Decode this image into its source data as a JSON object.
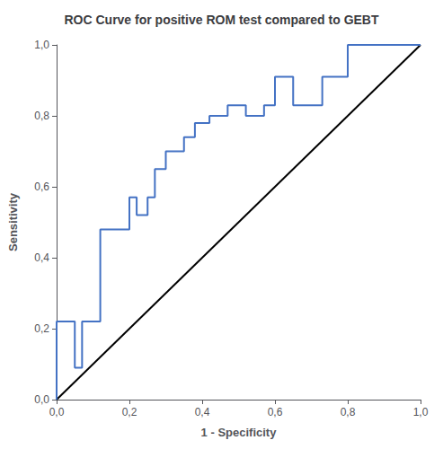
{
  "chart_data": {
    "type": "line",
    "title": "ROC Curve for positive ROM test compared to GEBT",
    "xlabel": "1 - Specificity",
    "ylabel": "Sensitivity",
    "series": [
      {
        "color": "#000000",
        "x": [
          0.0,
          1.0
        ],
        "values": [
          0.0,
          1.0
        ]
      },
      {
        "color": "#4472C4",
        "x": [
          0.0,
          0.0,
          0.05,
          0.05,
          0.07,
          0.07,
          0.12,
          0.12,
          0.17,
          0.17,
          0.2,
          0.2,
          0.22,
          0.22,
          0.25,
          0.25,
          0.27,
          0.27,
          0.3,
          0.3,
          0.35,
          0.35,
          0.38,
          0.38,
          0.42,
          0.42,
          0.47,
          0.47,
          0.52,
          0.52,
          0.57,
          0.57,
          0.6,
          0.6,
          0.65,
          0.65,
          0.73,
          0.73,
          0.8,
          0.8,
          1.0
        ],
        "values": [
          0.0,
          0.22,
          0.22,
          0.09,
          0.09,
          0.22,
          0.22,
          0.48,
          0.48,
          0.48,
          0.48,
          0.57,
          0.57,
          0.52,
          0.52,
          0.57,
          0.57,
          0.65,
          0.65,
          0.7,
          0.7,
          0.74,
          0.74,
          0.78,
          0.78,
          0.8,
          0.8,
          0.83,
          0.83,
          0.8,
          0.8,
          0.83,
          0.83,
          0.91,
          0.91,
          0.83,
          0.83,
          0.91,
          0.91,
          1.0,
          1.0
        ]
      }
    ],
    "xlim": [
      0.0,
      1.0
    ],
    "ylim": [
      0.0,
      1.0
    ],
    "xticks": [
      {
        "value": 0.0,
        "label": "0,0"
      },
      {
        "value": 0.2,
        "label": "0,2"
      },
      {
        "value": 0.4,
        "label": "0,4"
      },
      {
        "value": 0.6,
        "label": "0,6"
      },
      {
        "value": 0.8,
        "label": "0,8"
      },
      {
        "value": 1.0,
        "label": "1,0"
      }
    ],
    "yticks": [
      {
        "value": 0.0,
        "label": "0,0"
      },
      {
        "value": 0.2,
        "label": "0,2"
      },
      {
        "value": 0.4,
        "label": "0,4"
      },
      {
        "value": 0.6,
        "label": "0,6"
      },
      {
        "value": 0.8,
        "label": "0,8"
      },
      {
        "value": 1.0,
        "label": "1,0"
      }
    ],
    "grid": false
  }
}
